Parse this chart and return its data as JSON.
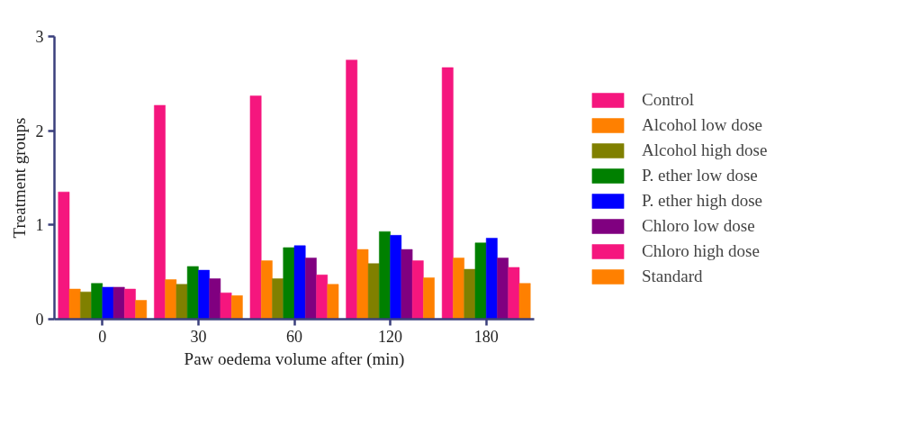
{
  "chart_data": {
    "type": "bar",
    "xlabel": "Paw oedema volume after (min)",
    "ylabel": "Treatment groups",
    "categories": [
      "0",
      "30",
      "60",
      "120",
      "180"
    ],
    "series": [
      {
        "name": "Control",
        "color": "#f5167e",
        "values": [
          1.35,
          2.27,
          2.37,
          2.75,
          2.67
        ]
      },
      {
        "name": "Alcohol low dose",
        "color": "#ff8000",
        "values": [
          0.32,
          0.42,
          0.62,
          0.74,
          0.65
        ]
      },
      {
        "name": "Alcohol high dose",
        "color": "#808000",
        "values": [
          0.29,
          0.37,
          0.43,
          0.59,
          0.53
        ]
      },
      {
        "name": "P. ether low dose",
        "color": "#008000",
        "values": [
          0.38,
          0.56,
          0.76,
          0.93,
          0.81
        ]
      },
      {
        "name": "P. ether high dose",
        "color": "#0000ff",
        "values": [
          0.34,
          0.52,
          0.78,
          0.89,
          0.86
        ]
      },
      {
        "name": "Chloro low dose",
        "color": "#800080",
        "values": [
          0.34,
          0.43,
          0.65,
          0.74,
          0.65
        ]
      },
      {
        "name": "Chloro high dose",
        "color": "#f5167e",
        "values": [
          0.32,
          0.28,
          0.47,
          0.62,
          0.55
        ]
      },
      {
        "name": "Standard",
        "color": "#ff8000",
        "values": [
          0.2,
          0.25,
          0.37,
          0.44,
          0.38
        ]
      }
    ],
    "ylim": [
      0,
      3
    ],
    "yticks": [
      0,
      1,
      2,
      3
    ],
    "grid": false,
    "legend": "right"
  }
}
